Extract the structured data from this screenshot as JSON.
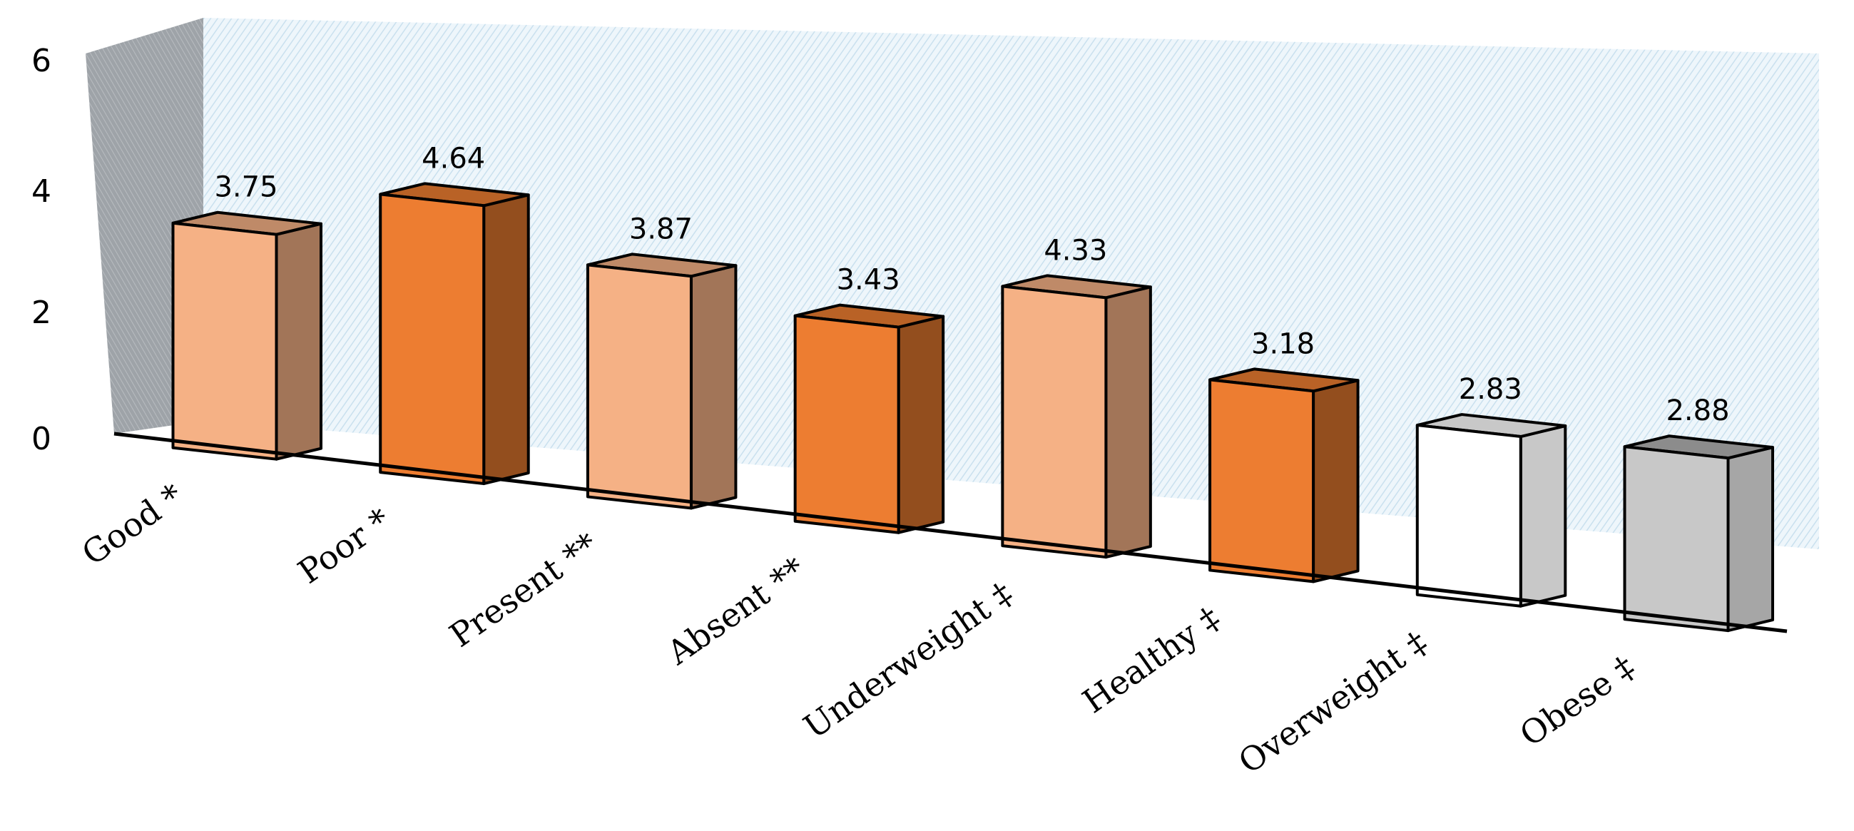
{
  "chart_data": {
    "type": "bar",
    "categories": [
      "Good *",
      "Poor *",
      "Present **",
      "Absent **",
      "Underweight ‡",
      "Healthy ‡",
      "Overweight ‡",
      "Obese ‡"
    ],
    "values": [
      3.75,
      4.64,
      3.87,
      3.43,
      4.33,
      3.18,
      2.83,
      2.88
    ],
    "value_labels": [
      "3.75",
      "4.64",
      "3.87",
      "3.43",
      "4.33",
      "3.18",
      "2.83",
      "2.88"
    ],
    "y_ticks": [
      "0",
      "2",
      "4",
      "6"
    ],
    "ylim": [
      0,
      6
    ],
    "title": "",
    "xlabel": "",
    "ylabel": "",
    "grid": false,
    "legend": "none",
    "bar_colors": [
      "#F5B185",
      "#ED7D31",
      "#F5B185",
      "#ED7D31",
      "#F5B185",
      "#ED7D31",
      "#FFFFFF",
      "#C8C8C8"
    ]
  }
}
